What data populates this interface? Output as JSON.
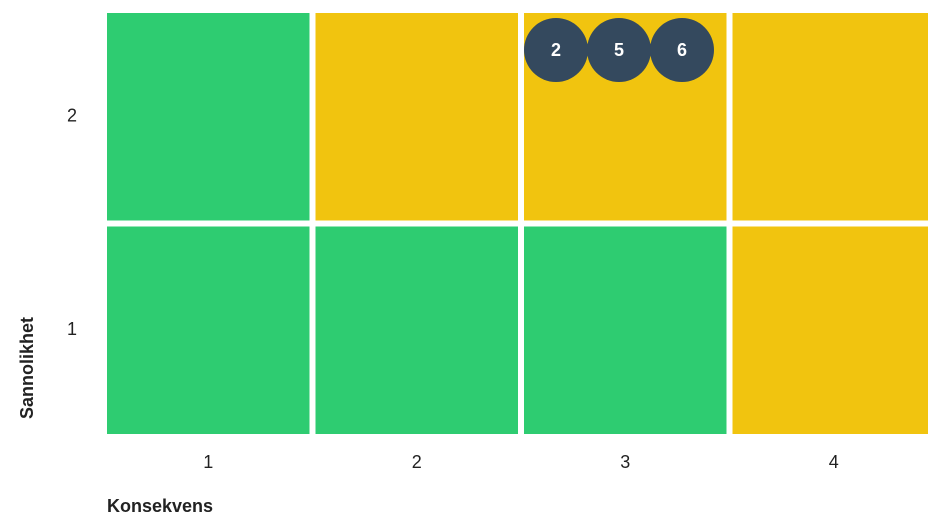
{
  "chart_data": {
    "type": "heatmap",
    "title": "",
    "xlabel": "Konsekvens",
    "ylabel": "Sannolikhet",
    "x_categories": [
      "1",
      "2",
      "3",
      "4"
    ],
    "y_categories": [
      "2",
      "1"
    ],
    "cells": [
      [
        "green",
        "yellow",
        "yellow",
        "yellow"
      ],
      [
        "green",
        "green",
        "green",
        "yellow"
      ]
    ],
    "markers": [
      {
        "label": "2",
        "x": "3",
        "y": "2"
      },
      {
        "label": "5",
        "x": "3",
        "y": "2"
      },
      {
        "label": "6",
        "x": "3",
        "y": "2"
      }
    ],
    "colors": {
      "green": "#2ecc71",
      "yellow": "#f1c40f",
      "marker": "#34495e",
      "marker_text": "#ffffff"
    },
    "grid": false,
    "legend": "none"
  }
}
